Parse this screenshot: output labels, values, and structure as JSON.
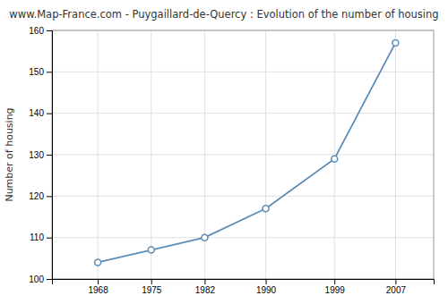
{
  "chart_data": {
    "type": "line",
    "title": "www.Map-France.com - Puygaillard-de-Quercy : Evolution of the number of housing",
    "y_label": "Number of housing",
    "x": [
      1968,
      1975,
      1982,
      1990,
      1999,
      2007
    ],
    "values": [
      104,
      107,
      110,
      117,
      129,
      157
    ],
    "xlim": [
      1962,
      2012
    ],
    "xticks": [
      1968,
      1975,
      1982,
      1990,
      1999,
      2007
    ],
    "ylim": [
      100,
      160
    ],
    "yticks": [
      100,
      110,
      120,
      130,
      140,
      150,
      160
    ],
    "color": "#5b8db8",
    "marker": "circle",
    "line_style": "solid",
    "grid": true
  }
}
